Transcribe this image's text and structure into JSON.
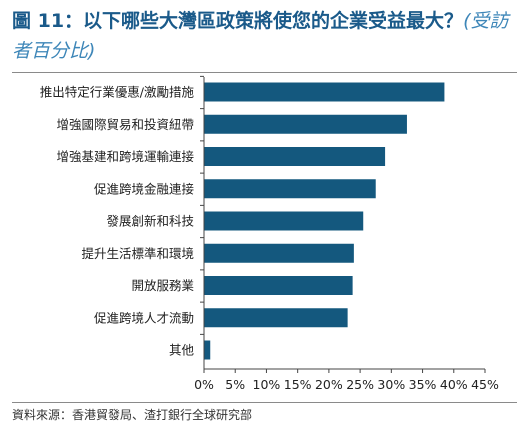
{
  "header": {
    "title": "圖 11：以下哪些大灣區政策將使您的企業受益最大？",
    "note": "(受訪者百分比)"
  },
  "footer": {
    "source": "資料來源：香港貿發局、渣打銀行全球研究部"
  },
  "colors": {
    "bar": "#14587e",
    "title": "#1a5a8a",
    "axis": "#444444"
  },
  "chart_data": {
    "type": "bar",
    "orientation": "horizontal",
    "categories": [
      "推出特定行業優惠/激勵措施",
      "增強國際貿易和投資紐帶",
      "增強基建和跨境運輸連接",
      "促進跨境金融連接",
      "發展創新和科技",
      "提升生活標準和環境",
      "開放服務業",
      "促進跨境人才流動",
      "其他"
    ],
    "values": [
      38.5,
      32.5,
      29,
      27.5,
      25.5,
      24,
      23.8,
      23,
      1
    ],
    "xlim": [
      0,
      45
    ],
    "xticks": [
      "0%",
      "5%",
      "10%",
      "15%",
      "20%",
      "25%",
      "30%",
      "35%",
      "40%",
      "45%"
    ],
    "grid": false
  }
}
